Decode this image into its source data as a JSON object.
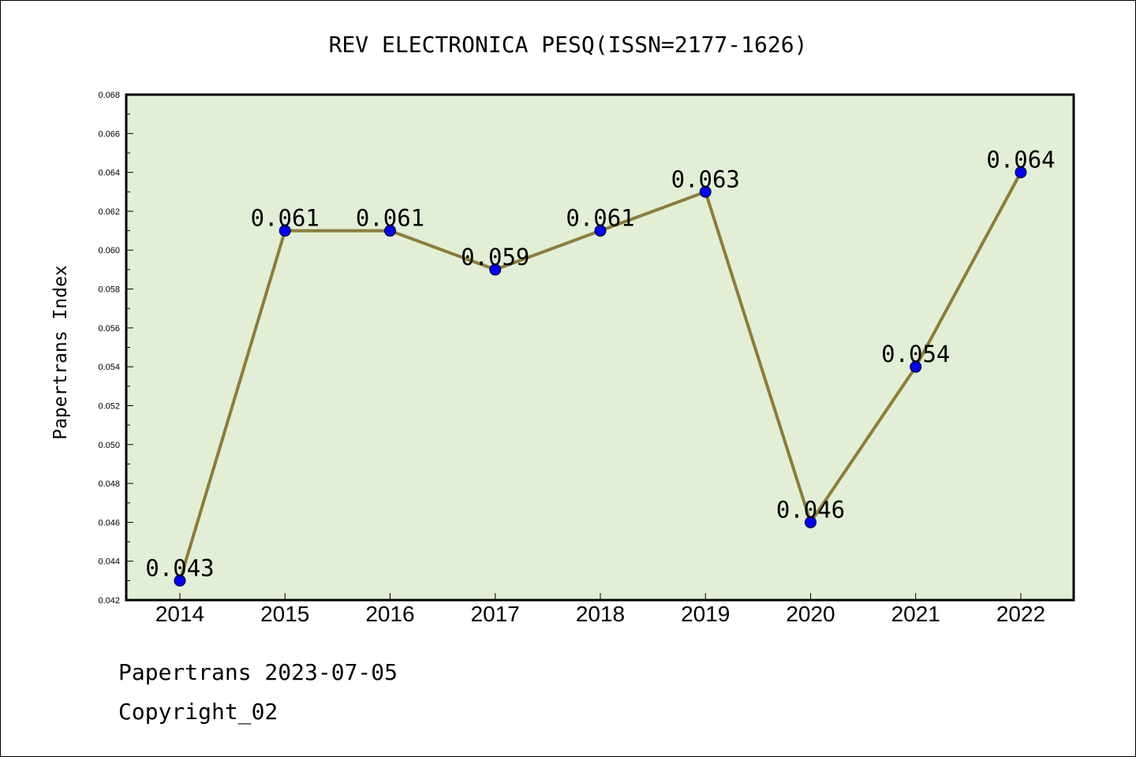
{
  "chart_data": {
    "type": "line",
    "title": "REV ELECTRONICA PESQ(ISSN=2177-1626)",
    "ylabel": "Papertrans Index",
    "xlabel": "",
    "categories": [
      "2014",
      "2015",
      "2016",
      "2017",
      "2018",
      "2019",
      "2020",
      "2021",
      "2022"
    ],
    "values": [
      0.043,
      0.061,
      0.061,
      0.059,
      0.061,
      0.063,
      0.046,
      0.054,
      0.064
    ],
    "data_labels": [
      "0.043",
      "0.061",
      "0.061",
      "0.059",
      "0.061",
      "0.063",
      "0.046",
      "0.054",
      "0.064"
    ],
    "ylim": [
      0.042,
      0.068
    ],
    "yticks": [
      "0.042",
      "0.044",
      "0.046",
      "0.048",
      "0.050",
      "0.052",
      "0.054",
      "0.056",
      "0.058",
      "0.060",
      "0.062",
      "0.064",
      "0.066",
      "0.068"
    ],
    "grid": false,
    "colors": {
      "plot_background": "#e2efd6",
      "line": "#8c7d3a",
      "marker": "#0000ff"
    }
  },
  "footer": {
    "source": "Papertrans 2023-07-05",
    "copyright": "Copyright_02"
  }
}
